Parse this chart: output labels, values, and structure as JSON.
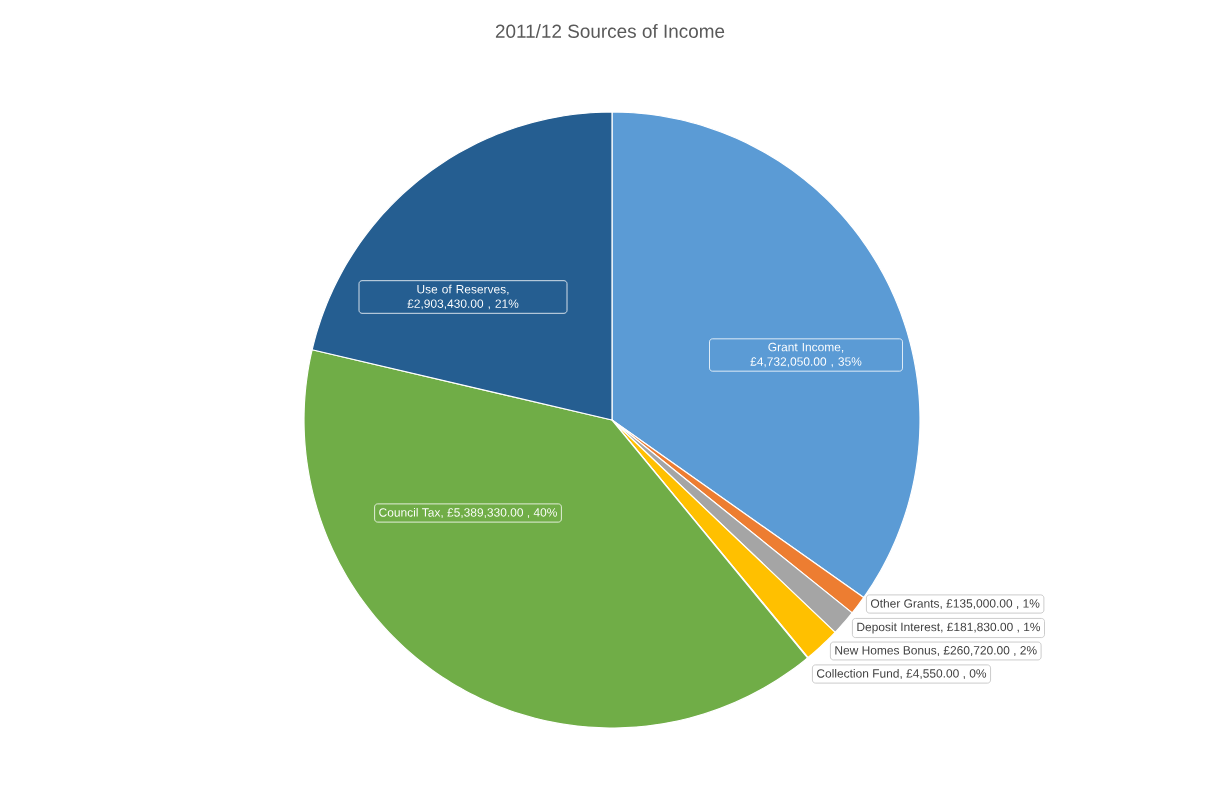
{
  "chart_data": {
    "type": "pie",
    "title": "2011/12 Sources of Income",
    "categories": [
      "Grant Income",
      "Other Grants",
      "Deposit Interest",
      "New Homes Bonus",
      "Collection Fund",
      "Council Tax",
      "Use of Reserves"
    ],
    "values": [
      4732050,
      135000,
      181830,
      260720,
      4550,
      5389330,
      2903430
    ],
    "colors": [
      "#5b9bd5",
      "#ed7d31",
      "#a5a5a5",
      "#ffc000",
      "#4472c4",
      "#70ad47",
      "#255e91"
    ],
    "value_labels": [
      ", £4,732,050.00 , 35%",
      ", £135,000.00 , 1%",
      ", £181,830.00 , 1%",
      ", £260,720.00 , 2%",
      ", £4,550.00 , 0%",
      ", £5,389,330.00 , 40%",
      ", £2,903,430.00 , 21%"
    ]
  }
}
